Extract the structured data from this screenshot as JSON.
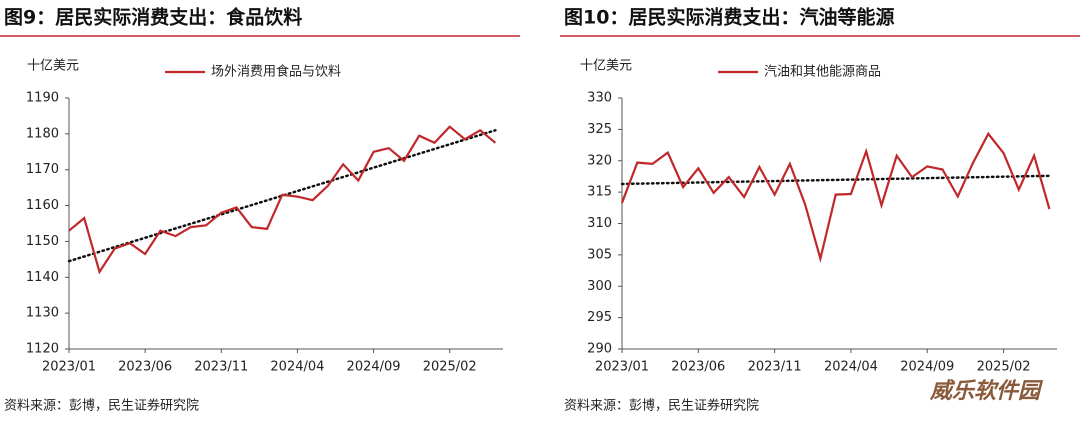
{
  "chart_data": [
    {
      "type": "line",
      "title": "图9：居民实际消费支出：食品饮料",
      "unit": "十亿美元",
      "source": "资料来源：彭博，民生证券研究院",
      "categories": [
        "2023/01",
        null,
        null,
        null,
        null,
        "2023/06",
        null,
        null,
        null,
        null,
        "2023/11",
        null,
        null,
        null,
        null,
        "2024/04",
        null,
        null,
        null,
        null,
        "2024/09",
        null,
        null,
        null,
        null,
        "2025/02",
        null,
        null,
        null
      ],
      "series": [
        {
          "name": "场外消费用食品与饮料",
          "color": "#c0282b",
          "values": [
            1153,
            1156.5,
            1141.5,
            1148,
            1149.5,
            1146.5,
            1153,
            1151.5,
            1154,
            1154.5,
            1158,
            1159.5,
            1154,
            1153.5,
            1163,
            1162.5,
            1161.5,
            1165.5,
            1171.5,
            1167,
            1175,
            1176,
            1172.5,
            1179.5,
            1177.5,
            1182,
            1178.5,
            1181,
            1177.5
          ]
        }
      ],
      "trendline": {
        "color": "#111111",
        "values": [
          1144.5,
          1181
        ]
      },
      "ylim": [
        1120,
        1190
      ],
      "yticks": [
        1120,
        1130,
        1140,
        1150,
        1160,
        1170,
        1180,
        1190
      ]
    },
    {
      "type": "line",
      "title": "图10：居民实际消费支出：汽油等能源",
      "unit": "十亿美元",
      "source": "资料来源：彭博，民生证券研究院",
      "categories": [
        "2023/01",
        null,
        null,
        null,
        null,
        "2023/06",
        null,
        null,
        null,
        null,
        "2023/11",
        null,
        null,
        null,
        null,
        "2024/04",
        null,
        null,
        null,
        null,
        "2024/09",
        null,
        null,
        null,
        null,
        "2025/02",
        null,
        null,
        null
      ],
      "series": [
        {
          "name": "汽油和其他能源商品",
          "color": "#c0282b",
          "values": [
            313.3,
            319.7,
            319.5,
            321.3,
            315.8,
            318.8,
            314.9,
            317.4,
            314.2,
            319,
            314.6,
            319.5,
            313,
            304.4,
            314.6,
            314.7,
            321.5,
            312.9,
            320.8,
            317.4,
            319.1,
            318.6,
            314.3,
            319.7,
            324.3,
            321.2,
            315.4,
            320.8,
            312.3
          ]
        }
      ],
      "trendline": {
        "color": "#111111",
        "values": [
          316.3,
          317.6
        ]
      },
      "ylim": [
        290,
        330
      ],
      "yticks": [
        290,
        295,
        300,
        305,
        310,
        315,
        320,
        325,
        330
      ]
    }
  ],
  "watermark": "威乐软件园"
}
